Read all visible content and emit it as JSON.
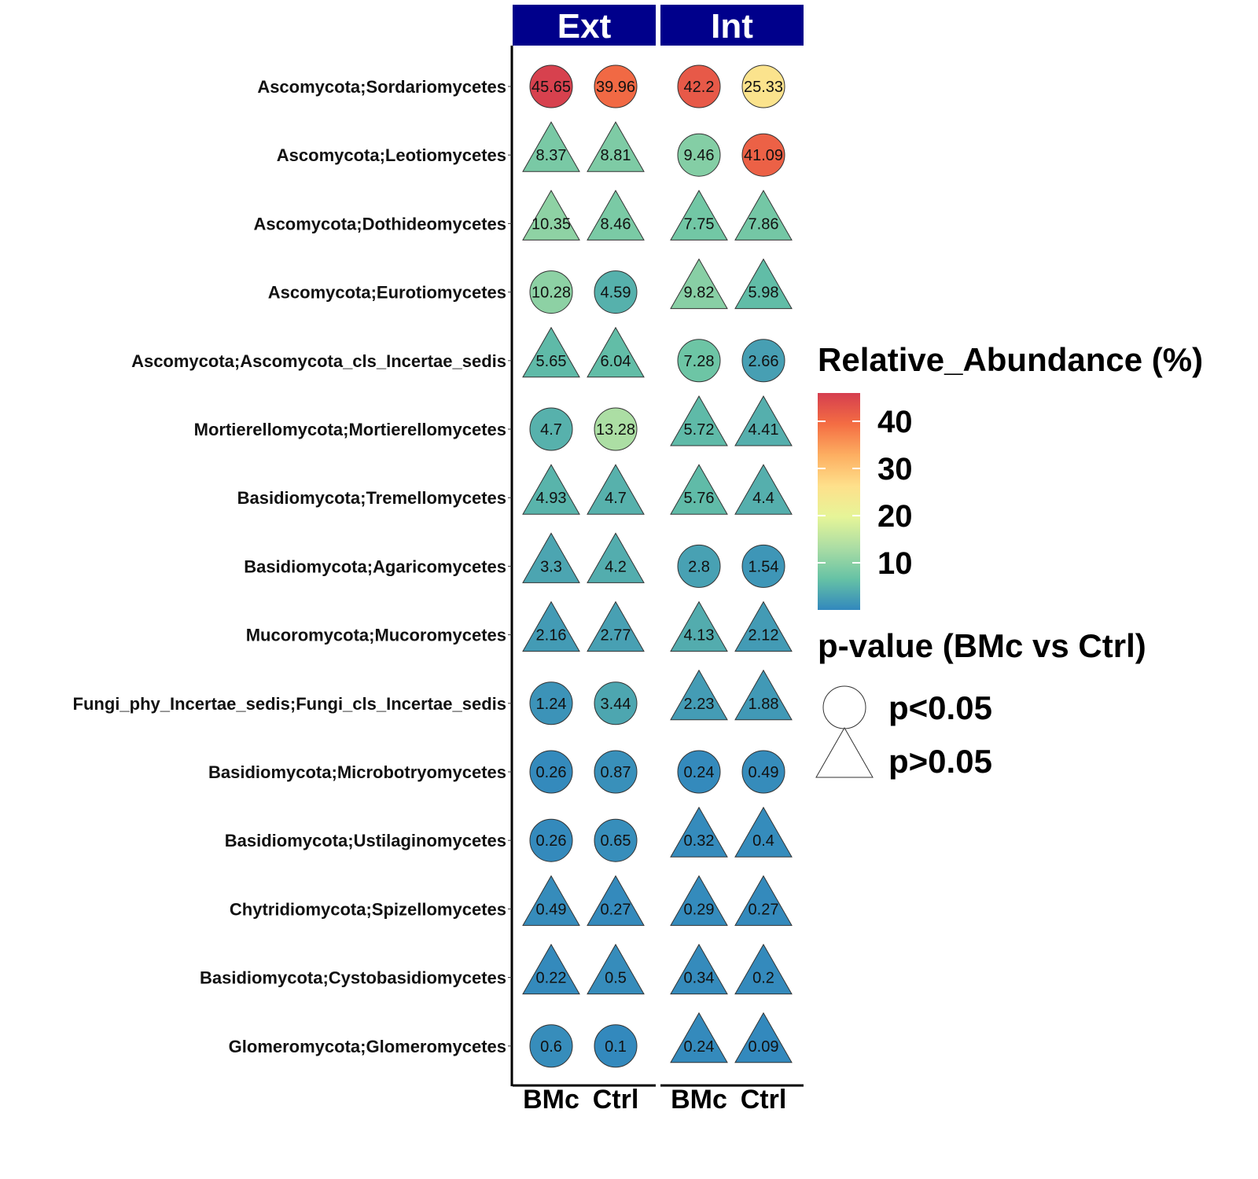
{
  "chart_data": {
    "type": "dot-heatmap",
    "panels": [
      {
        "name": "Ext",
        "columns": [
          "BMc",
          "Ctrl"
        ]
      },
      {
        "name": "Int",
        "columns": [
          "BMc",
          "Ctrl"
        ]
      }
    ],
    "rows": [
      "Ascomycota;Sordariomycetes",
      "Ascomycota;Leotiomycetes",
      "Ascomycota;Dothideomycetes",
      "Ascomycota;Eurotiomycetes",
      "Ascomycota;Ascomycota_cls_Incertae_sedis",
      "Mortierellomycota;Mortierellomycetes",
      "Basidiomycota;Tremellomycetes",
      "Basidiomycota;Agaricomycetes",
      "Mucoromycota;Mucoromycetes",
      "Fungi_phy_Incertae_sedis;Fungi_cls_Incertae_sedis",
      "Basidiomycota;Microbotryomycetes",
      "Basidiomycota;Ustilaginomycetes",
      "Chytridiomycota;Spizellomycetes",
      "Basidiomycota;Cystobasidiomycetes",
      "Glomeromycota;Glomeromycetes"
    ],
    "values": [
      [
        [
          45.65,
          39.96
        ],
        [
          42.2,
          25.33
        ]
      ],
      [
        [
          8.37,
          8.81
        ],
        [
          9.46,
          41.09
        ]
      ],
      [
        [
          10.35,
          8.46
        ],
        [
          7.75,
          7.86
        ]
      ],
      [
        [
          10.28,
          4.59
        ],
        [
          9.82,
          5.98
        ]
      ],
      [
        [
          5.65,
          6.04
        ],
        [
          7.28,
          2.66
        ]
      ],
      [
        [
          4.7,
          13.28
        ],
        [
          5.72,
          4.41
        ]
      ],
      [
        [
          4.93,
          4.7
        ],
        [
          5.76,
          4.4
        ]
      ],
      [
        [
          3.3,
          4.2
        ],
        [
          2.8,
          1.54
        ]
      ],
      [
        [
          2.16,
          2.77
        ],
        [
          4.13,
          2.12
        ]
      ],
      [
        [
          1.24,
          3.44
        ],
        [
          2.23,
          1.88
        ]
      ],
      [
        [
          0.26,
          0.87
        ],
        [
          0.24,
          0.49
        ]
      ],
      [
        [
          0.26,
          0.65
        ],
        [
          0.32,
          0.4
        ]
      ],
      [
        [
          0.49,
          0.27
        ],
        [
          0.29,
          0.27
        ]
      ],
      [
        [
          0.22,
          0.5
        ],
        [
          0.34,
          0.2
        ]
      ],
      [
        [
          0.6,
          0.1
        ],
        [
          0.24,
          0.09
        ]
      ]
    ],
    "significant": [
      [
        [
          true,
          true
        ],
        [
          true,
          true
        ]
      ],
      [
        [
          false,
          false
        ],
        [
          true,
          true
        ]
      ],
      [
        [
          false,
          false
        ],
        [
          false,
          false
        ]
      ],
      [
        [
          true,
          true
        ],
        [
          false,
          false
        ]
      ],
      [
        [
          false,
          false
        ],
        [
          true,
          true
        ]
      ],
      [
        [
          true,
          true
        ],
        [
          false,
          false
        ]
      ],
      [
        [
          false,
          false
        ],
        [
          false,
          false
        ]
      ],
      [
        [
          false,
          false
        ],
        [
          true,
          true
        ]
      ],
      [
        [
          false,
          false
        ],
        [
          false,
          false
        ]
      ],
      [
        [
          true,
          true
        ],
        [
          false,
          false
        ]
      ],
      [
        [
          true,
          true
        ],
        [
          true,
          true
        ]
      ],
      [
        [
          true,
          true
        ],
        [
          false,
          false
        ]
      ],
      [
        [
          false,
          false
        ],
        [
          false,
          false
        ]
      ],
      [
        [
          false,
          false
        ],
        [
          false,
          false
        ]
      ],
      [
        [
          true,
          true
        ],
        [
          false,
          false
        ]
      ]
    ],
    "color_scale": {
      "title": "Relative_Abundance (%)",
      "range": [
        0,
        46
      ],
      "ticks": [
        10,
        20,
        30,
        40
      ],
      "colors": [
        "#3288bd",
        "#66c2a5",
        "#abdda4",
        "#e6f598",
        "#fee08b",
        "#fdae61",
        "#f46d43",
        "#d53e4f"
      ]
    },
    "shape_legend": {
      "title": "p-value (BMc vs Ctrl)",
      "items": [
        {
          "shape": "circle",
          "label": "p<0.05"
        },
        {
          "shape": "triangle",
          "label": "p>0.05"
        }
      ]
    },
    "strip_color": "#00008b"
  }
}
